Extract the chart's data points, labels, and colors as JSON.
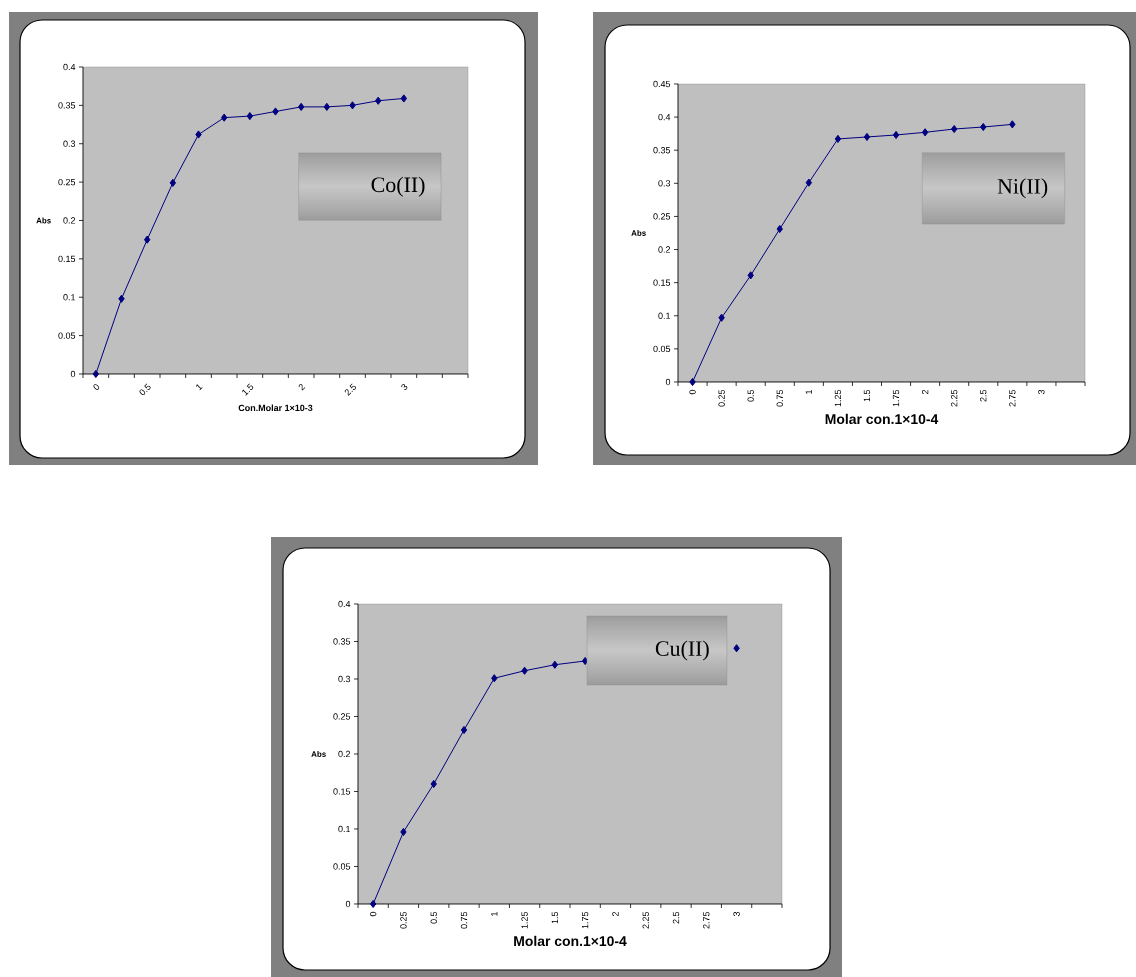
{
  "chart_data": [
    {
      "type": "line",
      "xlabel": "Con.Molar 1×10-3",
      "ylabel": "Abs",
      "annotations": [
        "Co(II)"
      ],
      "categories": [
        "0",
        null,
        "0.5",
        null,
        "1",
        null,
        "1.5",
        null,
        "2",
        null,
        "2.5",
        null,
        "3",
        null,
        null
      ],
      "series": [
        {
          "color": "#000080",
          "values": [
            0,
            0.098,
            0.175,
            0.249,
            0.312,
            0.334,
            0.336,
            0.342,
            0.348,
            0.348,
            0.35,
            0.356,
            0.359,
            null,
            null
          ]
        }
      ],
      "ylim": [
        0,
        0.4
      ],
      "yticks": [
        0,
        0.05,
        0.1,
        0.15,
        0.2,
        0.25,
        0.3,
        0.35,
        0.4
      ],
      "marker": "diamond"
    },
    {
      "type": "line",
      "xlabel": "Molar con.1×10-4",
      "ylabel": "Abs",
      "annotations": [
        "Ni(II)"
      ],
      "categories": [
        "0",
        "0.25",
        "0.5",
        "0.75",
        "1",
        "1.25",
        "1.5",
        "1.75",
        "2",
        "2.25",
        "2.5",
        "2.75",
        "3",
        null
      ],
      "series": [
        {
          "color": "#000080",
          "values": [
            0,
            0.097,
            0.161,
            0.231,
            0.301,
            0.367,
            0.37,
            0.373,
            0.377,
            0.382,
            0.385,
            0.389,
            null,
            null
          ]
        }
      ],
      "ylim": [
        0,
        0.45
      ],
      "yticks": [
        0,
        0.05,
        0.1,
        0.15,
        0.2,
        0.25,
        0.3,
        0.35,
        0.4,
        0.45
      ],
      "marker": "diamond"
    },
    {
      "type": "line",
      "xlabel": "Molar con.1×10-4",
      "ylabel": "Abs",
      "annotations": [
        "Cu(II)"
      ],
      "categories": [
        "0",
        "0.25",
        "0.5",
        "0.75",
        "1",
        "1.25",
        "1.5",
        "1.75",
        "2",
        "2.25",
        "2.5",
        "2.75",
        "3",
        null
      ],
      "series": [
        {
          "color": "#000080",
          "values": [
            0,
            0.096,
            0.16,
            0.232,
            0.301,
            0.311,
            0.319,
            0.324,
            null,
            null,
            null,
            null,
            0.341,
            null
          ]
        }
      ],
      "ylim": [
        0,
        0.4
      ],
      "yticks": [
        0,
        0.05,
        0.1,
        0.15,
        0.2,
        0.25,
        0.3,
        0.35,
        0.4
      ],
      "marker": "diamond"
    }
  ]
}
